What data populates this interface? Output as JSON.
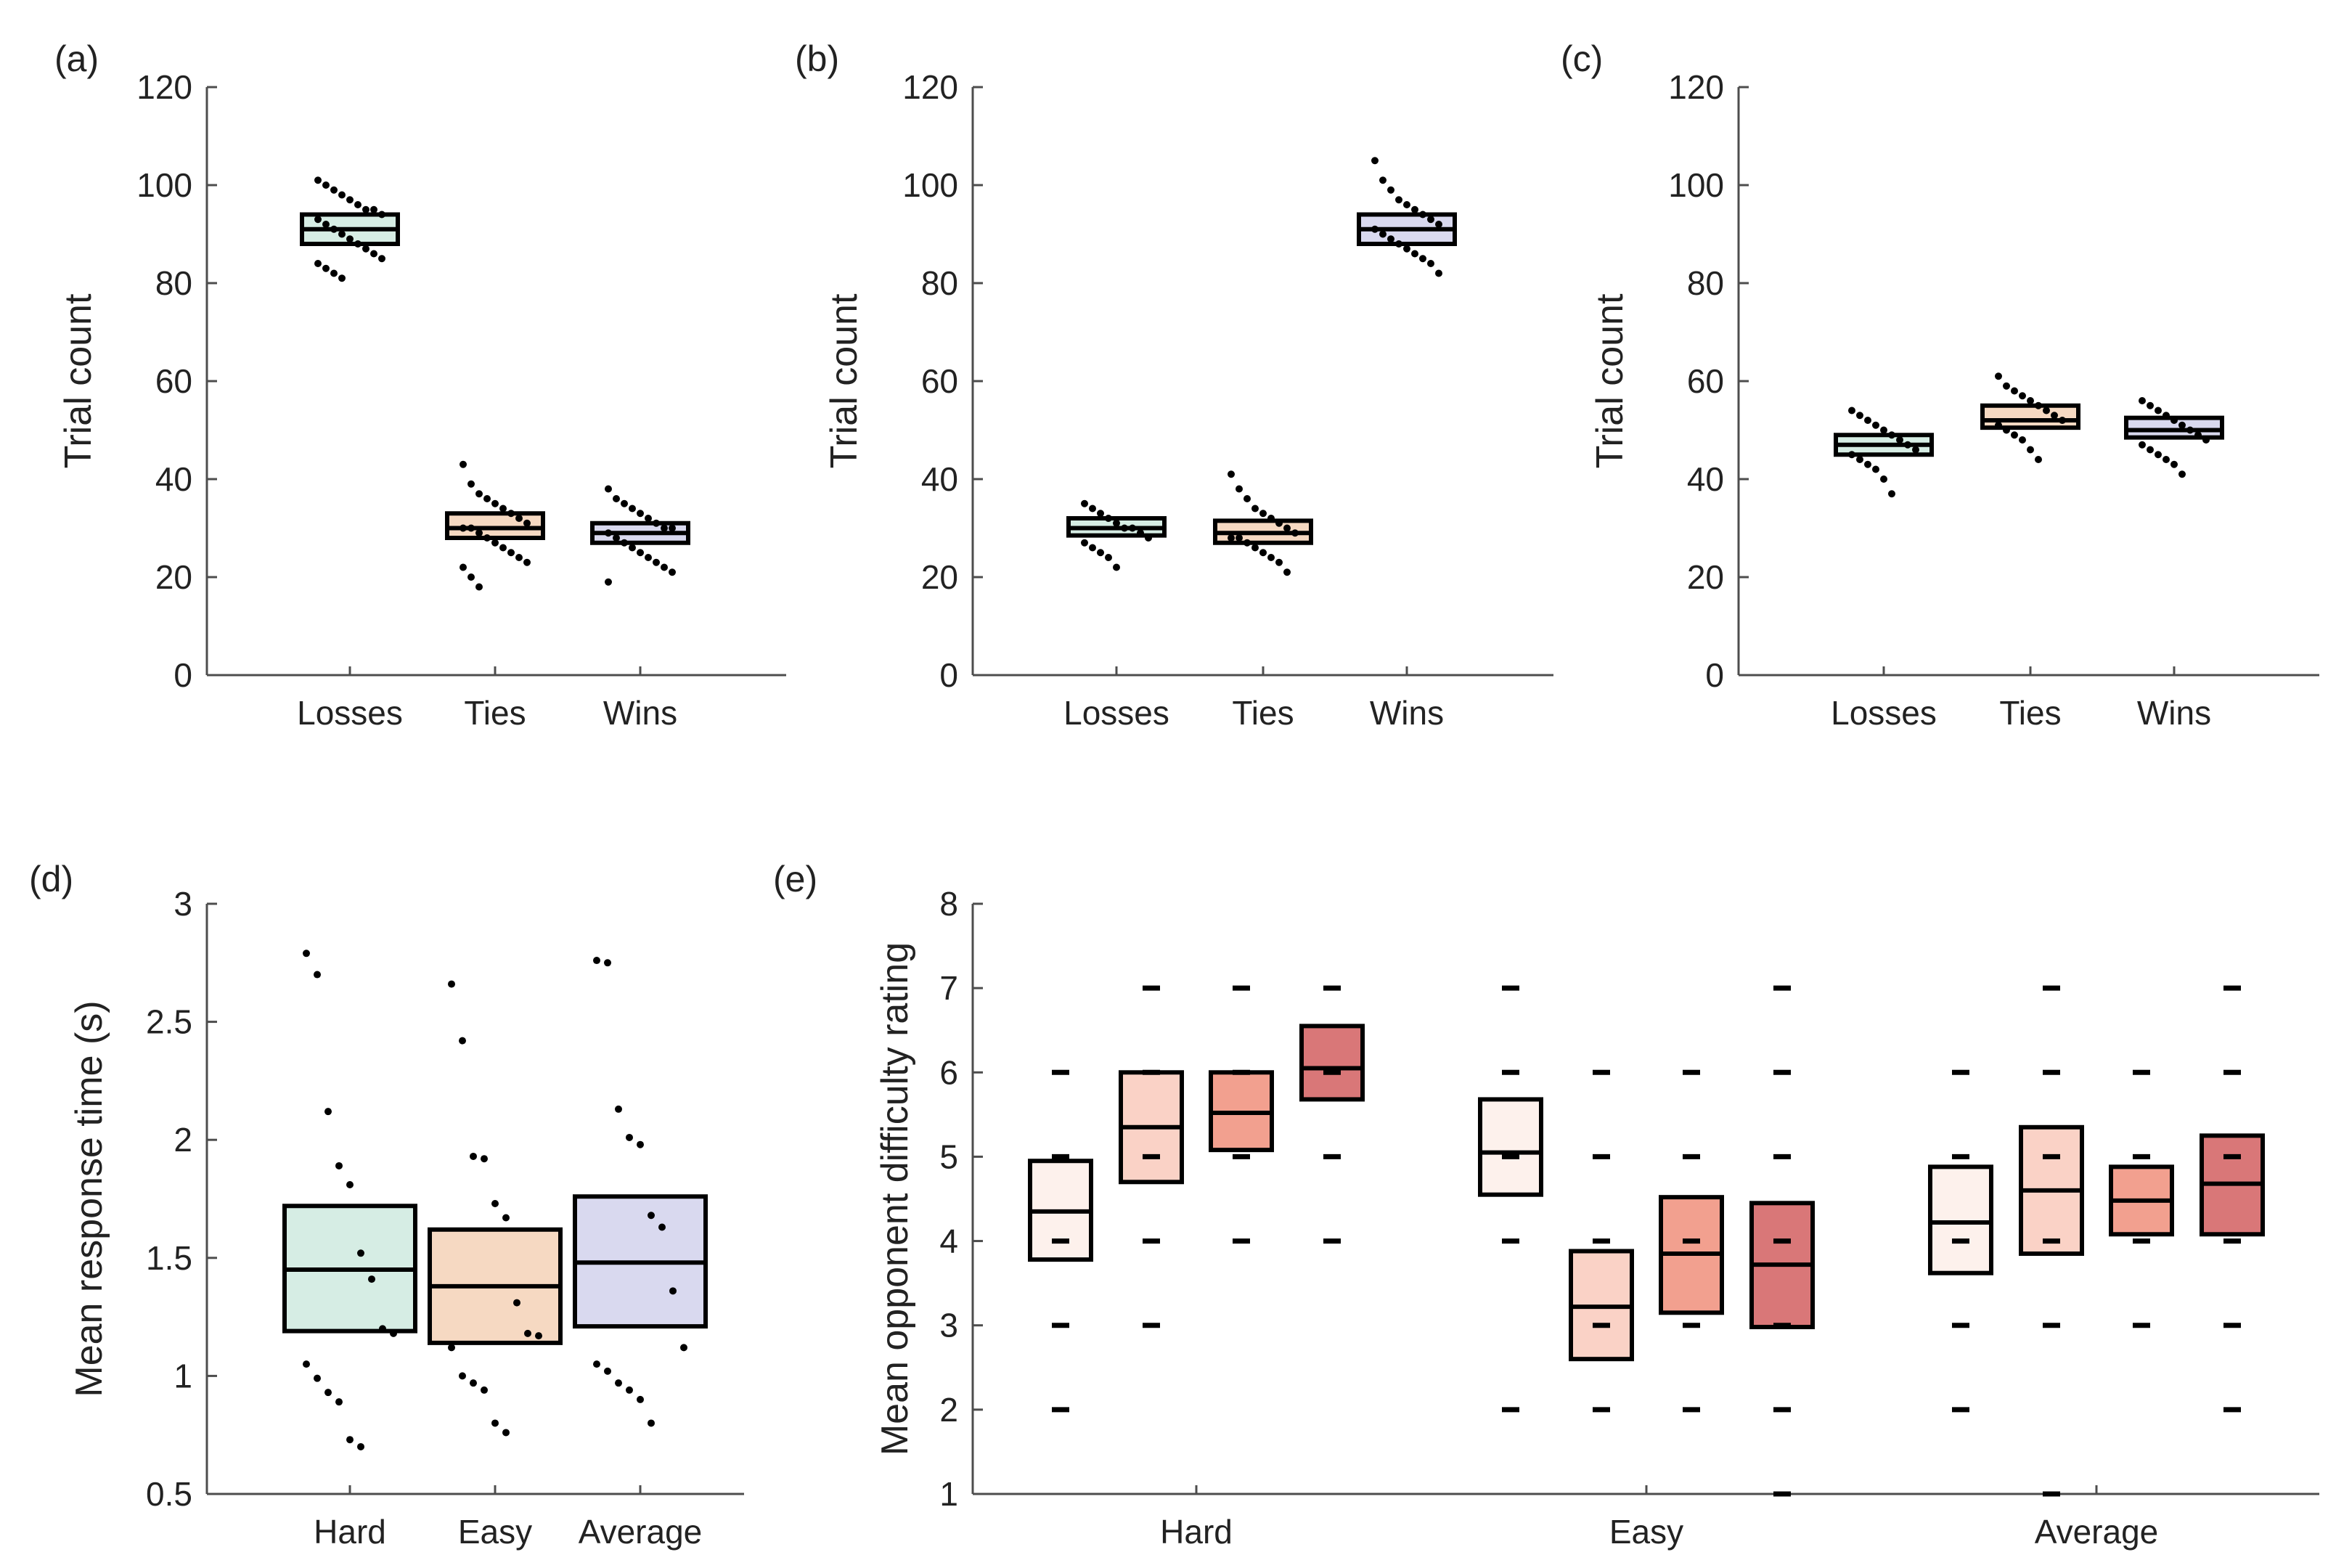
{
  "chart_data": [
    {
      "panel": "(a)",
      "type": "box",
      "ylabel": "Trial count",
      "ylim": [
        0,
        120
      ],
      "yticks": [
        "0",
        "20",
        "40",
        "60",
        "80",
        "100",
        "120"
      ],
      "categories": [
        "Losses",
        "Ties",
        "Wins"
      ],
      "colors": [
        "#d6ede4",
        "#f6d9c2",
        "#d9d9ef"
      ],
      "boxes": [
        {
          "mean": 91,
          "low": 88,
          "high": 94
        },
        {
          "mean": 30,
          "low": 28,
          "high": 33
        },
        {
          "mean": 29,
          "low": 27,
          "high": 31
        }
      ],
      "points": [
        [
          101,
          100,
          99,
          98,
          97,
          96,
          95,
          95,
          94,
          93,
          92,
          91,
          90,
          89,
          88,
          87,
          86,
          85,
          84,
          83,
          82,
          81
        ],
        [
          43,
          39,
          37,
          36,
          35,
          34,
          33,
          32,
          31,
          30,
          30,
          29,
          28,
          27,
          26,
          25,
          24,
          23,
          22,
          20,
          18
        ],
        [
          38,
          36,
          35,
          34,
          33,
          32,
          31,
          30,
          30,
          29,
          28,
          27,
          26,
          25,
          24,
          23,
          22,
          21,
          19
        ]
      ]
    },
    {
      "panel": "(b)",
      "type": "box",
      "ylabel": "Trial count",
      "ylim": [
        0,
        120
      ],
      "yticks": [
        "0",
        "20",
        "40",
        "60",
        "80",
        "100",
        "120"
      ],
      "categories": [
        "Losses",
        "Ties",
        "Wins"
      ],
      "colors": [
        "#d6ede4",
        "#f6d9c2",
        "#d9d9ef"
      ],
      "boxes": [
        {
          "mean": 30,
          "low": 28.5,
          "high": 32
        },
        {
          "mean": 29,
          "low": 27,
          "high": 31.5
        },
        {
          "mean": 91,
          "low": 88,
          "high": 94
        }
      ],
      "points": [
        [
          35,
          34,
          33,
          32,
          31,
          30,
          30,
          29,
          28,
          27,
          26,
          25,
          24,
          22
        ],
        [
          41,
          38,
          36,
          34,
          33,
          32,
          31,
          30,
          29,
          28,
          28,
          27,
          26,
          25,
          24,
          23,
          21
        ],
        [
          105,
          101,
          99,
          97,
          96,
          95,
          94,
          93,
          92,
          91,
          90,
          89,
          88,
          87,
          86,
          85,
          84,
          82
        ]
      ]
    },
    {
      "panel": "(c)",
      "type": "box",
      "ylabel": "Trial count",
      "ylim": [
        0,
        120
      ],
      "yticks": [
        "0",
        "20",
        "40",
        "60",
        "80",
        "100",
        "120"
      ],
      "categories": [
        "Losses",
        "Ties",
        "Wins"
      ],
      "colors": [
        "#d6ede4",
        "#f6d9c2",
        "#d9d9ef"
      ],
      "boxes": [
        {
          "mean": 47,
          "low": 45,
          "high": 49
        },
        {
          "mean": 52,
          "low": 50.5,
          "high": 55
        },
        {
          "mean": 50,
          "low": 48.5,
          "high": 52.5
        }
      ],
      "points": [
        [
          54,
          53,
          52,
          51,
          50,
          49,
          48,
          47,
          46,
          45,
          44,
          43,
          42,
          40,
          37
        ],
        [
          61,
          59,
          58,
          57,
          56,
          55,
          54,
          53,
          52,
          51,
          50,
          49,
          48,
          46,
          44
        ],
        [
          56,
          55,
          54,
          53,
          52,
          51,
          50,
          49,
          48,
          47,
          46,
          45,
          44,
          43,
          41
        ]
      ]
    },
    {
      "panel": "(d)",
      "type": "box",
      "ylabel": "Mean response time (s)",
      "ylim": [
        0.5,
        3
      ],
      "yticks": [
        "0.5",
        "1",
        "1.5",
        "2",
        "2.5",
        "3"
      ],
      "categories": [
        "Hard",
        "Easy",
        "Average"
      ],
      "colors": [
        "#d6ede4",
        "#f6d9c2",
        "#d9d9ef"
      ],
      "boxes": [
        {
          "mean": 1.45,
          "low": 1.19,
          "high": 1.72
        },
        {
          "mean": 1.38,
          "low": 1.14,
          "high": 1.62
        },
        {
          "mean": 1.48,
          "low": 1.21,
          "high": 1.76
        }
      ],
      "points": [
        [
          2.79,
          2.7,
          2.12,
          1.89,
          1.81,
          1.52,
          1.41,
          1.2,
          1.18,
          1.05,
          0.99,
          0.93,
          0.89,
          0.73,
          0.7
        ],
        [
          2.66,
          2.42,
          1.93,
          1.92,
          1.73,
          1.67,
          1.31,
          1.18,
          1.17,
          1.12,
          1.0,
          0.97,
          0.94,
          0.8,
          0.76
        ],
        [
          2.76,
          2.75,
          2.13,
          2.01,
          1.98,
          1.68,
          1.63,
          1.36,
          1.12,
          1.05,
          1.02,
          0.97,
          0.94,
          0.9,
          0.8
        ]
      ]
    },
    {
      "panel": "(e)",
      "type": "box",
      "ylabel": "Mean opponent difficulty rating",
      "ylim": [
        1,
        8
      ],
      "yticks": [
        "1",
        "2",
        "3",
        "4",
        "5",
        "6",
        "7",
        "8"
      ],
      "categories": [
        "Hard",
        "Easy",
        "Average"
      ],
      "colors": [
        "#fdf1ec",
        "#fad2c6",
        "#f2a08f",
        "#d97778"
      ],
      "groups": [
        {
          "boxes": [
            {
              "mean": 4.35,
              "low": 3.78,
              "high": 4.95
            },
            {
              "mean": 5.35,
              "low": 4.7,
              "high": 6.0
            },
            {
              "mean": 5.52,
              "low": 5.08,
              "high": 6.0
            },
            {
              "mean": 6.05,
              "low": 5.68,
              "high": 6.55
            }
          ],
          "points": [
            [
              6,
              5,
              4,
              3,
              2
            ],
            [
              7,
              6,
              5,
              4,
              3
            ],
            [
              7,
              6,
              5,
              4
            ],
            [
              7,
              6,
              5,
              4
            ]
          ]
        },
        {
          "boxes": [
            {
              "mean": 5.05,
              "low": 4.55,
              "high": 5.68
            },
            {
              "mean": 3.22,
              "low": 2.6,
              "high": 3.88
            },
            {
              "mean": 3.85,
              "low": 3.15,
              "high": 4.52
            },
            {
              "mean": 3.72,
              "low": 2.98,
              "high": 4.45
            }
          ],
          "points": [
            [
              7,
              6,
              5,
              4,
              2
            ],
            [
              6,
              5,
              4,
              3,
              2
            ],
            [
              6,
              5,
              4,
              3,
              2
            ],
            [
              7,
              6,
              5,
              4,
              3,
              2,
              1
            ]
          ]
        },
        {
          "boxes": [
            {
              "mean": 4.22,
              "low": 3.62,
              "high": 4.88
            },
            {
              "mean": 4.6,
              "low": 3.85,
              "high": 5.35
            },
            {
              "mean": 4.48,
              "low": 4.08,
              "high": 4.88
            },
            {
              "mean": 4.68,
              "low": 4.08,
              "high": 5.25
            }
          ],
          "points": [
            [
              6,
              5,
              4,
              3,
              2
            ],
            [
              7,
              6,
              5,
              4,
              3,
              1
            ],
            [
              6,
              5,
              4,
              3
            ],
            [
              7,
              6,
              5,
              4,
              3,
              2
            ]
          ]
        }
      ]
    }
  ]
}
